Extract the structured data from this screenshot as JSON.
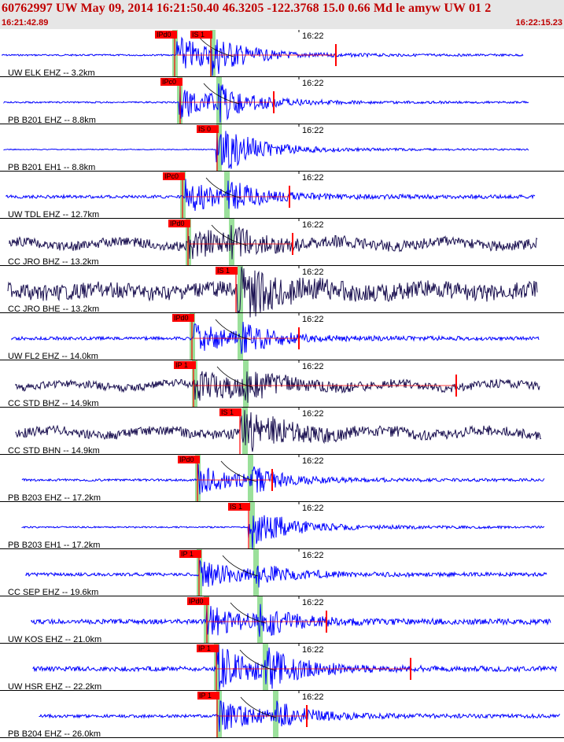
{
  "header": {
    "title": "60762997 UW May 09, 2014 16:21:50.40   46.3205 -122.3768 15.0 0.66 Md le amyw UW 01    2",
    "start_time": "16:21:42.89",
    "end_time": "16:22:15.23"
  },
  "colors": {
    "blue": "#0000ff",
    "navy": "#1a1050",
    "red": "#ff0000",
    "green": "#9be09b"
  },
  "traces": [
    {
      "label": "UW ELK EHZ -- 3.2km",
      "time_label": "16:22",
      "color": "blue",
      "p_pick": "IPd0",
      "s_pick": "IS 1"
    },
    {
      "label": "PB B201 EHZ -- 8.8km",
      "time_label": "16:22",
      "color": "blue",
      "p_pick": "IPc0",
      "s_pick": ""
    },
    {
      "label": "PB B201 EH1 -- 8.8km",
      "time_label": "16:22",
      "color": "blue",
      "p_pick": "",
      "s_pick": "IS 0"
    },
    {
      "label": "UW TDL EHZ -- 12.7km",
      "time_label": "16:22",
      "color": "blue",
      "p_pick": "IPc0",
      "s_pick": ""
    },
    {
      "label": "CC JRO BHZ -- 13.2km",
      "time_label": "16:22",
      "color": "navy",
      "p_pick": "IPd0",
      "s_pick": ""
    },
    {
      "label": "CC JRO BHE -- 13.2km",
      "time_label": "16:22",
      "color": "navy",
      "p_pick": "",
      "s_pick": "IS 1"
    },
    {
      "label": "UW FL2 EHZ -- 14.0km",
      "time_label": "16:22",
      "color": "blue",
      "p_pick": "IPd0",
      "s_pick": ""
    },
    {
      "label": "CC STD BHZ -- 14.9km",
      "time_label": "16:22",
      "color": "navy",
      "p_pick": "IP 1",
      "s_pick": ""
    },
    {
      "label": "CC STD BHN -- 14.9km",
      "time_label": "16:22",
      "color": "navy",
      "p_pick": "",
      "s_pick": "IS 1"
    },
    {
      "label": "PB B203 EHZ -- 17.2km",
      "time_label": "16:22",
      "color": "blue",
      "p_pick": "IPd0",
      "s_pick": ""
    },
    {
      "label": "PB B203 EH1 -- 17.2km",
      "time_label": "16:22",
      "color": "blue",
      "p_pick": "",
      "s_pick": "IS 1"
    },
    {
      "label": "CC SEP EHZ -- 19.6km",
      "time_label": "16:22",
      "color": "blue",
      "p_pick": "IP 1",
      "s_pick": ""
    },
    {
      "label": "UW KOS EHZ -- 21.0km",
      "time_label": "16:22",
      "color": "blue",
      "p_pick": "IPd0",
      "s_pick": ""
    },
    {
      "label": "UW HSR EHZ -- 22.2km",
      "time_label": "16:22",
      "color": "blue",
      "p_pick": "IP 1",
      "s_pick": ""
    },
    {
      "label": "PB B204 EHZ -- 26.0km",
      "time_label": "16:22",
      "color": "blue",
      "p_pick": "IP 1",
      "s_pick": ""
    }
  ]
}
